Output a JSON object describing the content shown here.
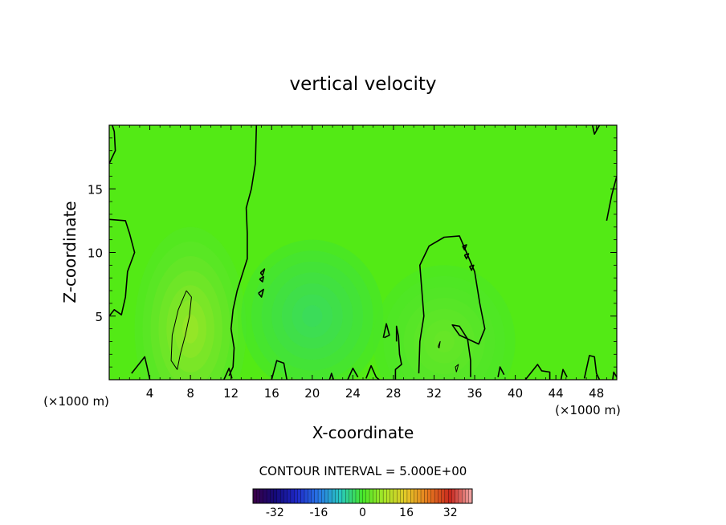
{
  "chart_data": {
    "type": "heatmap",
    "title": "vertical velocity",
    "xlabel": "X-coordinate",
    "ylabel": "Z-coordinate",
    "x_unit_label_left": "(×1000 m)",
    "x_unit_label_right": "(×1000 m)",
    "xlim": [
      0,
      50
    ],
    "ylim": [
      0,
      20
    ],
    "x_ticks": [
      "4",
      "8",
      "12",
      "16",
      "20",
      "24",
      "28",
      "32",
      "36",
      "40",
      "44",
      "48"
    ],
    "y_ticks": [
      "5",
      "10",
      "15"
    ],
    "x_tick_values": [
      4,
      8,
      12,
      16,
      20,
      24,
      28,
      32,
      36,
      40,
      44,
      48
    ],
    "y_tick_values": [
      5,
      10,
      15
    ],
    "contour_interval_text": "CONTOUR INTERVAL = 5.000E+00",
    "colorbar": {
      "range": [
        -40,
        40
      ],
      "tick_labels": [
        "-32",
        "-16",
        "0",
        "16",
        "32"
      ],
      "tick_values": [
        -32,
        -16,
        0,
        16,
        32
      ]
    },
    "features": [
      {
        "kind": "updraft",
        "x": 8,
        "z": 4,
        "peak": 7
      },
      {
        "kind": "weak-downdraft",
        "x": 20,
        "z": 5,
        "peak": -3
      },
      {
        "kind": "weak-updraft",
        "x": 33,
        "z": 3,
        "peak": 3
      }
    ],
    "contours": [
      {
        "level": 0,
        "points": [
          [
            14.5,
            20
          ],
          [
            14.4,
            17
          ],
          [
            14.0,
            15
          ],
          [
            13.5,
            13.5
          ],
          [
            13.6,
            11.5
          ],
          [
            13.6,
            9.5
          ],
          [
            13.0,
            8.0
          ],
          [
            12.6,
            7.0
          ],
          [
            12.2,
            5.5
          ],
          [
            12.0,
            4.0
          ],
          [
            12.3,
            2.5
          ],
          [
            12.2,
            1.0
          ],
          [
            11.8,
            0.3
          ]
        ]
      },
      {
        "level": 0,
        "points": [
          [
            30.5,
            0.5
          ],
          [
            30.6,
            3.0
          ],
          [
            31.0,
            5.0
          ],
          [
            30.8,
            7.0
          ],
          [
            30.6,
            9.0
          ],
          [
            31.5,
            10.5
          ],
          [
            33.0,
            11.2
          ],
          [
            34.5,
            11.3
          ],
          [
            35.2,
            10.0
          ],
          [
            36.0,
            8.5
          ],
          [
            36.5,
            6.0
          ],
          [
            37.0,
            4.0
          ],
          [
            36.4,
            2.8
          ],
          [
            34.5,
            3.5
          ],
          [
            33.8,
            4.3
          ],
          [
            34.5,
            4.2
          ],
          [
            35.3,
            3.2
          ],
          [
            35.6,
            1.5
          ],
          [
            35.6,
            0.2
          ]
        ]
      },
      {
        "level": 0,
        "points": [
          [
            0,
            5
          ],
          [
            0.5,
            5.5
          ],
          [
            1.2,
            5.1
          ],
          [
            1.6,
            6.5
          ],
          [
            1.8,
            8.5
          ],
          [
            2.5,
            10
          ],
          [
            2.0,
            11.5
          ],
          [
            1.6,
            12.5
          ],
          [
            0,
            12.6
          ]
        ]
      },
      {
        "level": 0,
        "points": [
          [
            0,
            17
          ],
          [
            0.6,
            18
          ],
          [
            0.5,
            19.5
          ],
          [
            0.3,
            20
          ]
        ]
      },
      {
        "level": 0,
        "points": [
          [
            49,
            12.5
          ],
          [
            49.5,
            14.5
          ],
          [
            50,
            16
          ]
        ]
      },
      {
        "level": 0,
        "points": [
          [
            47.6,
            20
          ],
          [
            47.8,
            19.3
          ],
          [
            48.3,
            20
          ]
        ]
      },
      {
        "level": 5,
        "points": [
          [
            7.6,
            7.0
          ],
          [
            8.1,
            6.5
          ],
          [
            7.9,
            5.0
          ],
          [
            7.5,
            3.5
          ],
          [
            7.0,
            2.0
          ],
          [
            6.7,
            0.8
          ],
          [
            6.1,
            1.5
          ],
          [
            6.2,
            3.5
          ],
          [
            6.8,
            5.5
          ],
          [
            7.6,
            7.0
          ]
        ]
      },
      {
        "level": 5,
        "points": [
          [
            32.4,
            2.6
          ],
          [
            32.6,
            3.0
          ],
          [
            32.5,
            2.5
          ],
          [
            32.4,
            2.6
          ]
        ]
      },
      {
        "level": 5,
        "points": [
          [
            34.2,
            0.6
          ],
          [
            34.4,
            1.2
          ],
          [
            34.1,
            1.0
          ],
          [
            34.2,
            0.6
          ]
        ]
      },
      {
        "level": 0,
        "points": [
          [
            2.2,
            0.5
          ],
          [
            3.5,
            1.8
          ],
          [
            3.7,
            1.1
          ],
          [
            4.0,
            0
          ]
        ]
      },
      {
        "level": 0,
        "points": [
          [
            11.3,
            0
          ],
          [
            11.8,
            0.9
          ],
          [
            12.1,
            0.1
          ]
        ]
      },
      {
        "level": 0,
        "points": [
          [
            16,
            0
          ],
          [
            16.5,
            1.5
          ],
          [
            17.2,
            1.3
          ],
          [
            17.5,
            0
          ]
        ]
      },
      {
        "level": 0,
        "points": [
          [
            21.7,
            0
          ],
          [
            21.9,
            0.5
          ],
          [
            22.1,
            0
          ]
        ]
      },
      {
        "level": 0,
        "points": [
          [
            23.5,
            0
          ],
          [
            24.0,
            0.9
          ],
          [
            24.5,
            0.2
          ]
        ]
      },
      {
        "level": 0,
        "points": [
          [
            25.3,
            0.1
          ],
          [
            25.8,
            1.1
          ],
          [
            26.3,
            0.2
          ],
          [
            26.6,
            0
          ]
        ]
      },
      {
        "level": 0,
        "points": [
          [
            27.0,
            3.3
          ],
          [
            27.3,
            4.4
          ],
          [
            27.6,
            3.5
          ],
          [
            27.1,
            3.3
          ]
        ]
      },
      {
        "level": 0,
        "points": [
          [
            28.3,
            3.0
          ],
          [
            28.3,
            4.2
          ],
          [
            28.5,
            3.4
          ],
          [
            28.6,
            2.0
          ],
          [
            28.8,
            1.2
          ],
          [
            28.2,
            0.8
          ],
          [
            28.2,
            0
          ]
        ]
      },
      {
        "level": 0,
        "points": [
          [
            38.3,
            0.2
          ],
          [
            38.5,
            1.0
          ],
          [
            38.9,
            0.4
          ]
        ]
      },
      {
        "level": 0,
        "points": [
          [
            41.0,
            0
          ],
          [
            42.2,
            1.2
          ],
          [
            42.6,
            0.7
          ],
          [
            43.4,
            0.6
          ],
          [
            43.4,
            0
          ]
        ]
      },
      {
        "level": 0,
        "points": [
          [
            44.5,
            0
          ],
          [
            44.7,
            0.8
          ],
          [
            45.1,
            0.2
          ]
        ]
      },
      {
        "level": 0,
        "points": [
          [
            46.8,
            0.1
          ],
          [
            47.3,
            1.9
          ],
          [
            47.8,
            1.8
          ],
          [
            48.0,
            0.5
          ],
          [
            48.3,
            0
          ]
        ]
      },
      {
        "level": 0,
        "points": [
          [
            49.6,
            0
          ],
          [
            49.7,
            0.6
          ],
          [
            50,
            0.2
          ]
        ]
      },
      {
        "level": 0,
        "points": [
          [
            14.8,
            7.9
          ],
          [
            15.2,
            8.1
          ],
          [
            15.1,
            7.7
          ],
          [
            14.8,
            7.9
          ]
        ]
      },
      {
        "level": 0,
        "points": [
          [
            14.9,
            8.4
          ],
          [
            15.3,
            8.7
          ],
          [
            15.1,
            8.2
          ],
          [
            14.9,
            8.4
          ]
        ]
      },
      {
        "level": 0,
        "points": [
          [
            14.7,
            6.8
          ],
          [
            15.2,
            7.1
          ],
          [
            15.0,
            6.5
          ],
          [
            14.7,
            6.8
          ]
        ]
      },
      {
        "level": 0,
        "points": [
          [
            34.8,
            10.5
          ],
          [
            35.2,
            10.6
          ],
          [
            35.0,
            10.2
          ],
          [
            34.8,
            10.5
          ]
        ]
      },
      {
        "level": 0,
        "points": [
          [
            35.0,
            9.8
          ],
          [
            35.4,
            9.9
          ],
          [
            35.2,
            9.5
          ],
          [
            35.0,
            9.8
          ]
        ]
      },
      {
        "level": 0,
        "points": [
          [
            35.5,
            8.9
          ],
          [
            35.9,
            9.0
          ],
          [
            35.7,
            8.6
          ],
          [
            35.5,
            8.9
          ]
        ]
      }
    ]
  }
}
